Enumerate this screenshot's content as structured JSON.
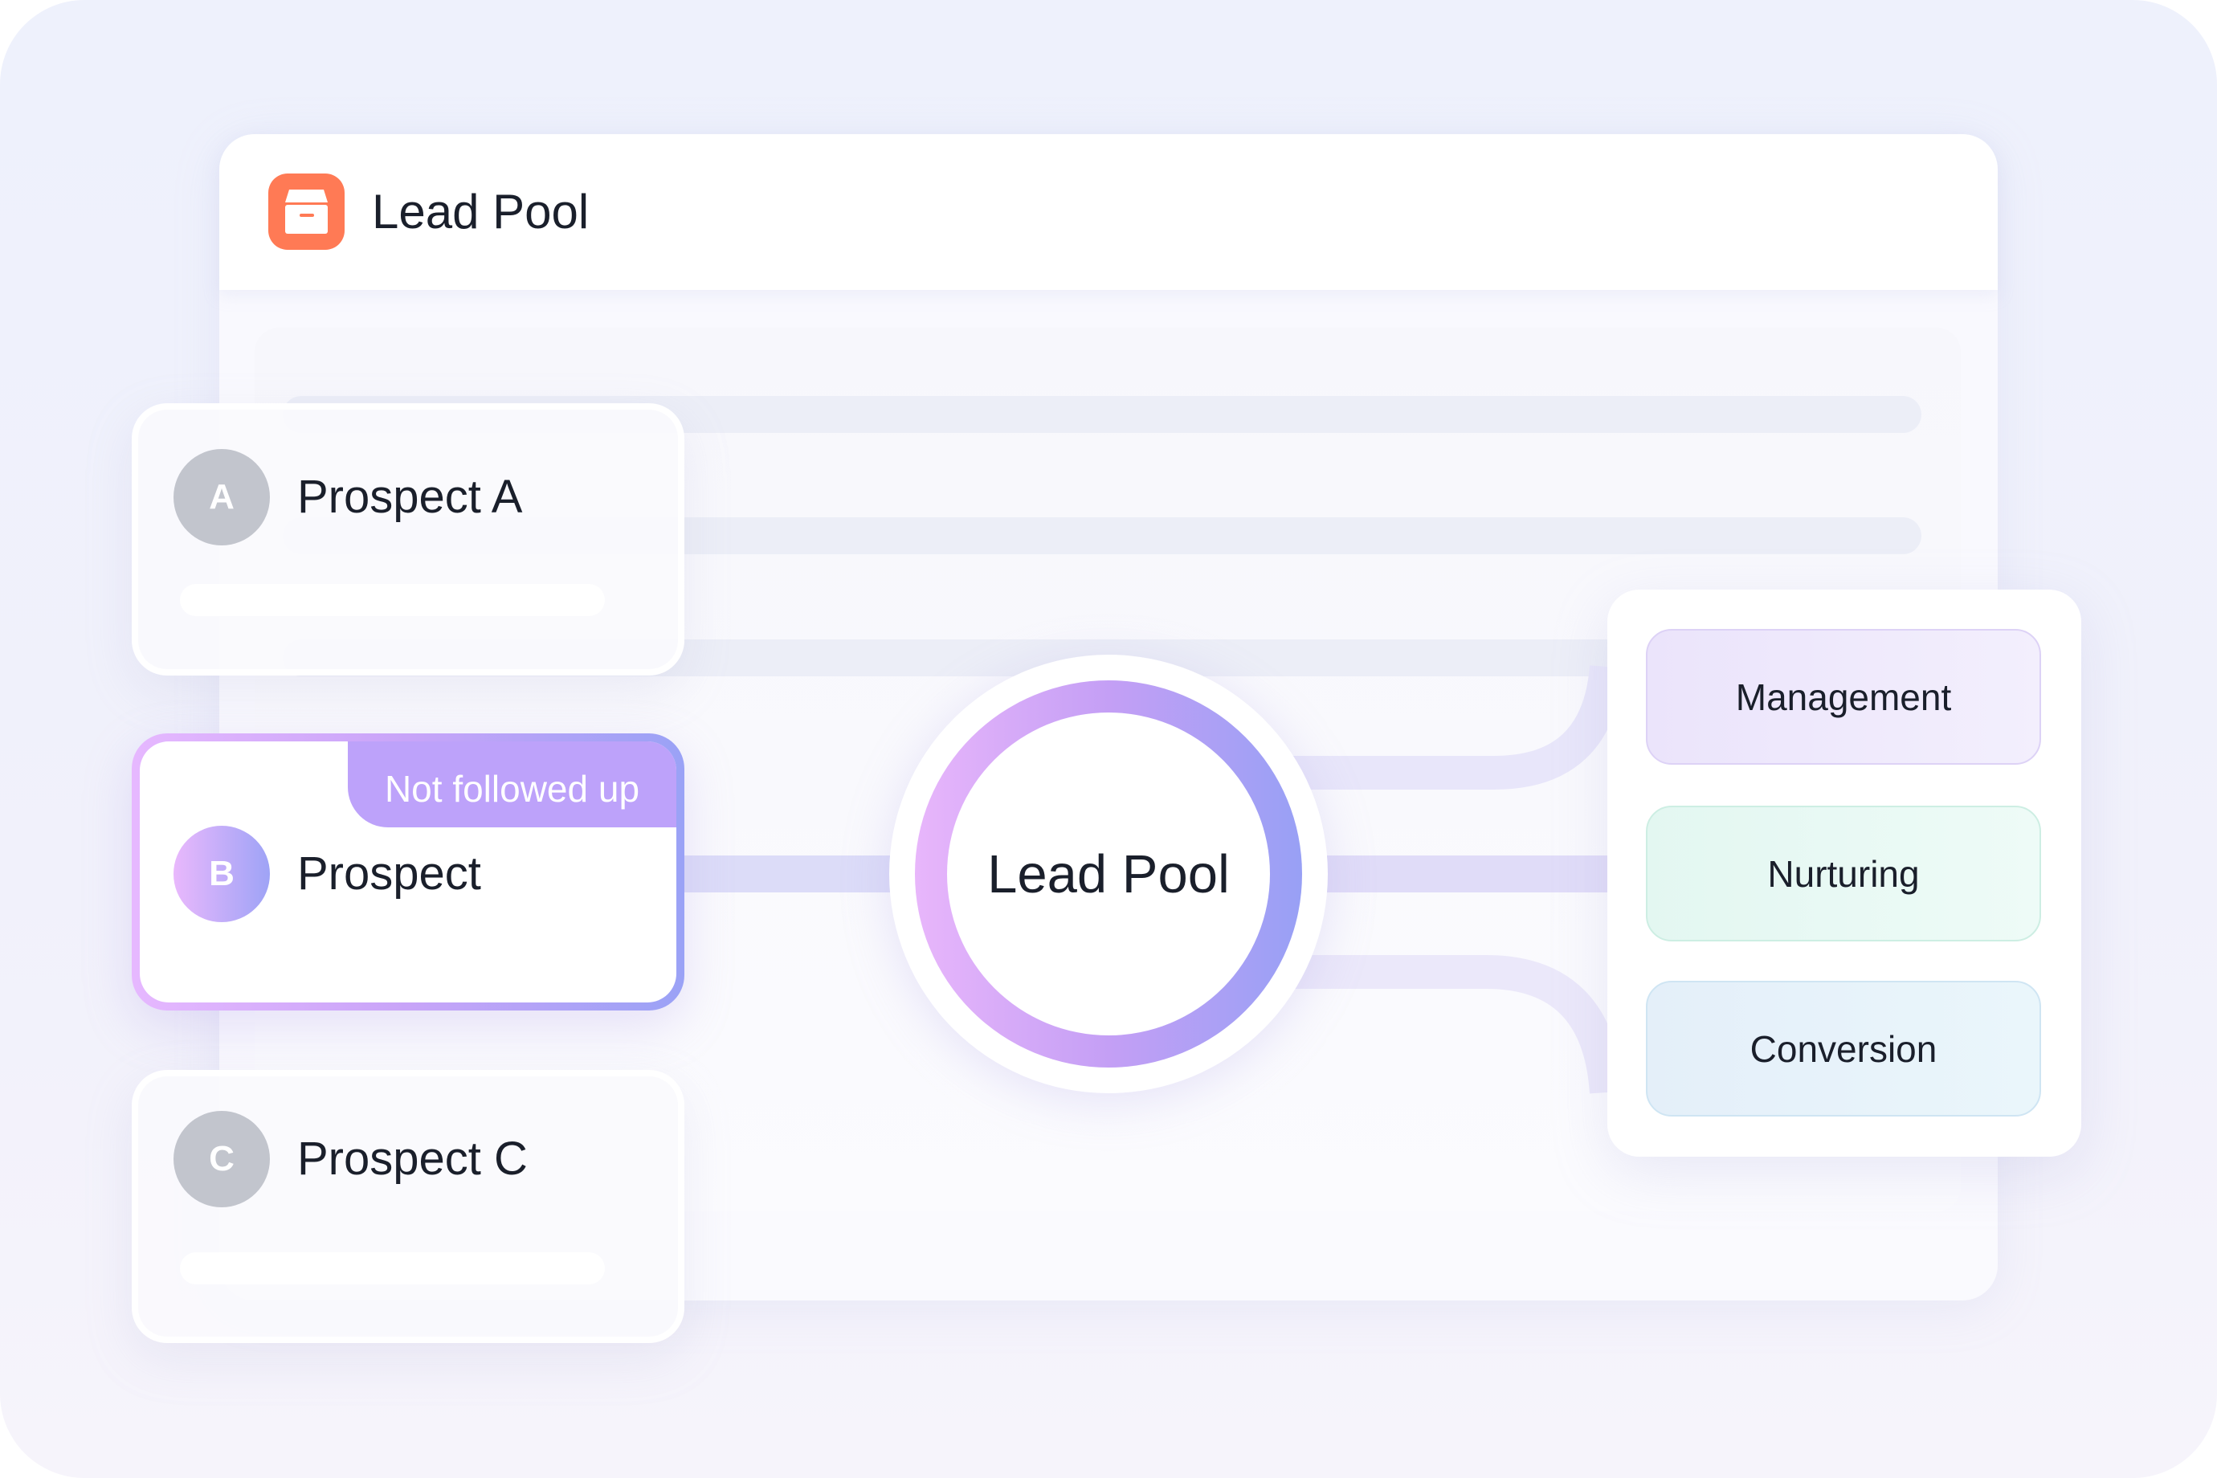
{
  "header": {
    "title": "Lead Pool",
    "icon": "archive-box-icon",
    "icon_color": "#ff7a55"
  },
  "prospects": [
    {
      "initial": "A",
      "name": "Prospect A"
    },
    {
      "initial": "B",
      "name": "Prospect",
      "badge": "Not followed up"
    },
    {
      "initial": "C",
      "name": "Prospect C"
    }
  ],
  "hub": {
    "label": "Lead Pool"
  },
  "stages": [
    {
      "label": "Management",
      "color": "#efe9fb"
    },
    {
      "label": "Nurturing",
      "color": "#e6f8f3"
    },
    {
      "label": "Conversion",
      "color": "#e6f1fb"
    }
  ],
  "colors": {
    "accent_start": "#e8b6fb",
    "accent_end": "#98a0f5",
    "badge": "#bda2fa"
  }
}
